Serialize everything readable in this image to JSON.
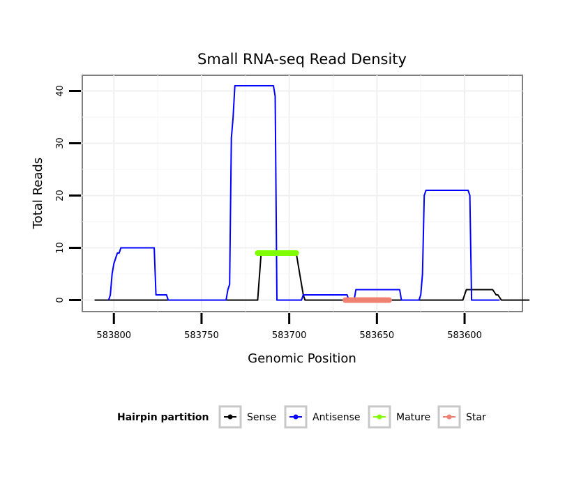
{
  "chart_data": {
    "type": "line",
    "title": "Small RNA-seq Read Density",
    "xlabel": "Genomic Position",
    "ylabel": "Total Reads",
    "xlim": [
      583818,
      583567
    ],
    "ylim": [
      -2.2,
      43
    ],
    "x_ticks": [
      583800,
      583750,
      583700,
      583650,
      583600
    ],
    "x_tick_labels": [
      "583800",
      "583750",
      "583700",
      "583650",
      "583600"
    ],
    "y_ticks": [
      0,
      10,
      20,
      30,
      40
    ],
    "y_tick_labels": [
      "0",
      "10",
      "20",
      "30",
      "40"
    ],
    "grid": true,
    "legend": {
      "title": "Hairpin partition",
      "placement": "bottom",
      "entries": [
        {
          "label": "Sense",
          "color": "#000000"
        },
        {
          "label": "Antisense",
          "color": "#0000ff"
        },
        {
          "label": "Mature",
          "color": "#7fff00"
        },
        {
          "label": "Star",
          "color": "#f08070"
        }
      ]
    },
    "series": [
      {
        "name": "Sense",
        "color": "#000000",
        "points": [
          [
            583811,
            0
          ],
          [
            583718,
            0
          ],
          [
            583716,
            9
          ],
          [
            583696,
            9
          ],
          [
            583694,
            5
          ],
          [
            583692,
            1
          ],
          [
            583691,
            0
          ],
          [
            583601,
            0
          ],
          [
            583599,
            2
          ],
          [
            583584,
            2
          ],
          [
            583582,
            1
          ],
          [
            583581,
            1
          ],
          [
            583579,
            0
          ],
          [
            583563,
            0
          ]
        ]
      },
      {
        "name": "Antisense",
        "color": "#0000ff",
        "points": [
          [
            583803,
            0
          ],
          [
            583802,
            1
          ],
          [
            583801,
            5
          ],
          [
            583800,
            7
          ],
          [
            583799,
            8
          ],
          [
            583798,
            9
          ],
          [
            583797,
            9
          ],
          [
            583796,
            10
          ],
          [
            583777,
            10
          ],
          [
            583776,
            1
          ],
          [
            583770,
            1
          ],
          [
            583769,
            0
          ],
          [
            583736,
            0
          ],
          [
            583735,
            2
          ],
          [
            583734,
            3
          ],
          [
            583733,
            31
          ],
          [
            583732,
            35
          ],
          [
            583731,
            41
          ],
          [
            583709,
            41
          ],
          [
            583708,
            39
          ],
          [
            583707,
            0
          ],
          [
            583693,
            0
          ],
          [
            583692,
            1
          ],
          [
            583667,
            1
          ],
          [
            583666,
            0
          ],
          [
            583663,
            0
          ],
          [
            583662,
            2
          ],
          [
            583637,
            2
          ],
          [
            583636,
            0
          ],
          [
            583626,
            0
          ],
          [
            583625,
            1
          ],
          [
            583624,
            5
          ],
          [
            583623,
            20
          ],
          [
            583622,
            21
          ],
          [
            583598,
            21
          ],
          [
            583597,
            20
          ],
          [
            583596,
            0
          ],
          [
            583580,
            0
          ]
        ]
      },
      {
        "name": "Mature",
        "color": "#7fff00",
        "points": [
          [
            583718,
            9
          ],
          [
            583696,
            9
          ]
        ]
      },
      {
        "name": "Star",
        "color": "#f08070",
        "points": [
          [
            583668,
            0
          ],
          [
            583643,
            0
          ]
        ]
      }
    ]
  }
}
